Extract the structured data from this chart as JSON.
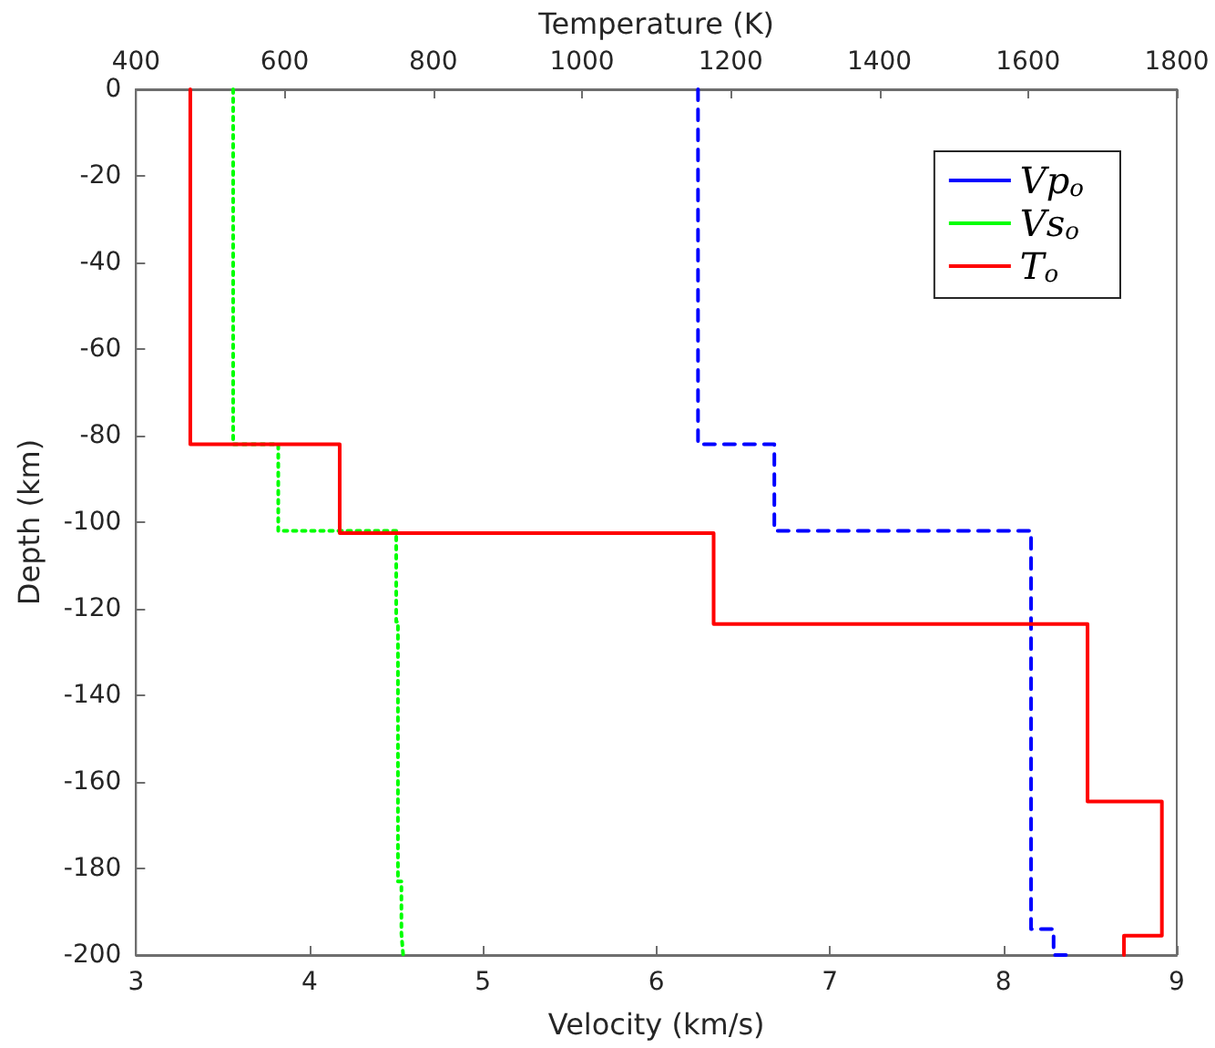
{
  "chart_data": {
    "type": "line",
    "xlabel": "Velocity (km/s)",
    "x2label": "Temperature (K)",
    "ylabel": "Depth (km)",
    "xlim": [
      3,
      9
    ],
    "xticks": [
      3,
      4,
      5,
      6,
      7,
      8,
      9
    ],
    "x2lim": [
      400,
      1800
    ],
    "x2ticks": [
      400,
      600,
      800,
      1000,
      1200,
      1400,
      1600,
      1800
    ],
    "ylim": [
      -200,
      0
    ],
    "yticks": [
      0,
      -20,
      -40,
      -60,
      -80,
      -100,
      -120,
      -140,
      -160,
      -180,
      -200
    ],
    "grid": false,
    "legend": "top right",
    "marker": "none",
    "series": [
      {
        "name": "Vp$_{o}$",
        "color": "#0000ff",
        "line_style": "dashed",
        "x": [
          6.24,
          6.24,
          6.68,
          6.68,
          8.16,
          8.16,
          8.29,
          8.29,
          8.38
        ],
        "values": [
          0,
          -82,
          -82,
          -102,
          -102,
          -194,
          -194,
          -200,
          -200
        ]
      },
      {
        "name": "Vs$_{o}$",
        "color": "#00ff00",
        "line_style": "dotted",
        "x": [
          3.56,
          3.56,
          3.82,
          3.82,
          4.5,
          4.5,
          4.51,
          4.51,
          4.53,
          4.53,
          4.54
        ],
        "values": [
          0,
          -82,
          -82,
          -102,
          -102,
          -123,
          -123,
          -183,
          -183,
          -195,
          -200
        ]
      },
      {
        "name": "T$_{o}$",
        "color": "#ff0000",
        "line_style": "solid",
        "axis": "x2",
        "x": [
          473,
          473,
          674,
          674,
          1177,
          1177,
          1680,
          1680,
          1780,
          1780,
          1729,
          1729
        ],
        "values": [
          0,
          -82,
          -82,
          -102.5,
          -102.5,
          -123.5,
          -123.5,
          -164.5,
          -164.5,
          -195.5,
          -195.5,
          -200
        ]
      }
    ]
  }
}
